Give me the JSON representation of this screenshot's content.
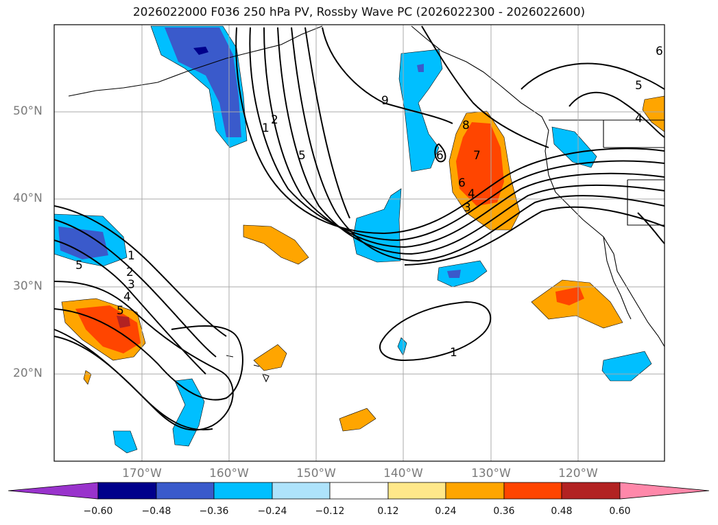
{
  "title": "2026022000 F036 250 hPa PV, Rossby Wave PC (2026022300 - 2026022600)",
  "map": {
    "lat_labels": [
      "50°N",
      "40°N",
      "30°N",
      "20°N"
    ],
    "lon_labels": [
      "170°W",
      "160°W",
      "150°W",
      "140°W",
      "130°W",
      "120°W"
    ],
    "contour_labels": [
      "9",
      "1",
      "2",
      "5",
      "6",
      "7",
      "8",
      "6",
      "4",
      "3",
      "5",
      "1",
      "2",
      "3",
      "4",
      "5",
      "1",
      "6",
      "5",
      "4"
    ],
    "gridlines": true
  },
  "colorbar": {
    "ticks": [
      "−0.60",
      "−0.48",
      "−0.36",
      "−0.24",
      "−0.12",
      "0.12",
      "0.24",
      "0.36",
      "0.48",
      "0.60"
    ],
    "colors": [
      "#9933cc",
      "#00008b",
      "#3a5acb",
      "#00bfff",
      "#aee3fb",
      "#ffffff",
      "#ffe88a",
      "#ffa500",
      "#ff4500",
      "#b22222",
      "#ff88aa"
    ]
  }
}
